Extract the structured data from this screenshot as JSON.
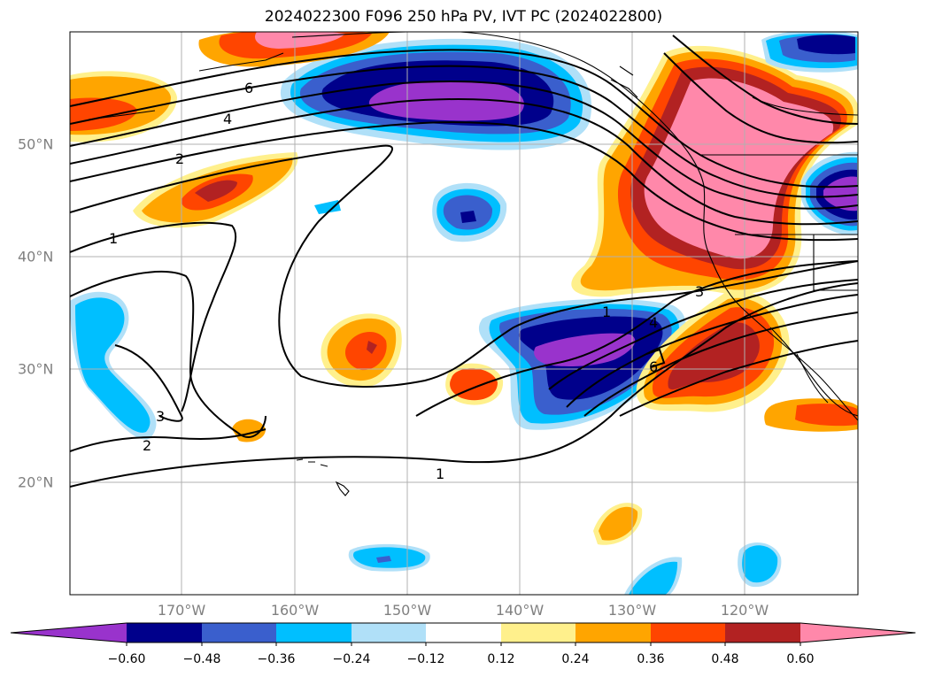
{
  "title": "2024022300 F096 250 hPa PV, IVT PC (2024022800)",
  "longitude_labels": [
    "170°W",
    "160°W",
    "150°W",
    "140°W",
    "130°W",
    "120°W"
  ],
  "latitude_labels": [
    "50°N",
    "40°N",
    "30°N",
    "20°N"
  ],
  "colorbar": {
    "ticks": [
      "−0.60",
      "−0.48",
      "−0.36",
      "−0.24",
      "−0.12",
      "0.12",
      "0.24",
      "0.36",
      "0.48",
      "0.60"
    ],
    "colors": [
      "#9933cc",
      "#00008b",
      "#3a5fcd",
      "#00bfff",
      "#b0e0f8",
      "#ffffff",
      "#fff08c",
      "#ffa500",
      "#ff4500",
      "#b22222",
      "#ff88aa"
    ],
    "extend": "both"
  },
  "contour_labels": [
    "6",
    "4",
    "2",
    "1",
    "3",
    "2",
    "3",
    "1",
    "1",
    "3",
    "4",
    "6"
  ],
  "colors": {
    "gridline": "#b0b0b0",
    "coastline": "#000000",
    "contour": "#000000"
  }
}
